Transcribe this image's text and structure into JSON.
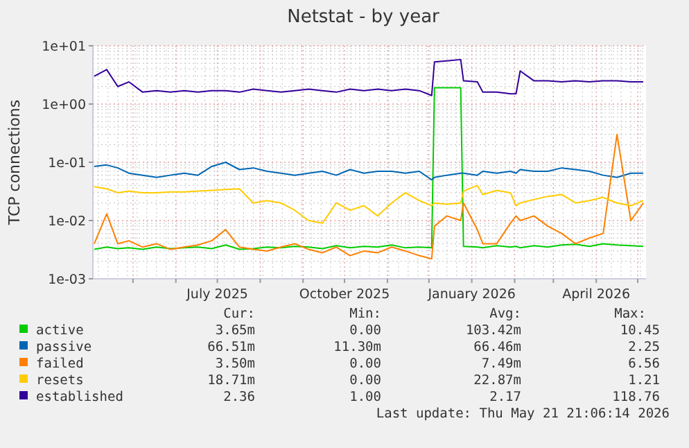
{
  "chart_data": {
    "type": "line",
    "title": "Netstat - by year",
    "ylabel": "TCP connections",
    "log": "y",
    "grid": true,
    "legend": "bottom",
    "line_style": "solid",
    "marker": "none",
    "xlim": [
      "2025-04-02",
      "2026-05-07"
    ],
    "xticks": [
      {
        "value": "2025-05-01",
        "label": null
      },
      {
        "value": "2025-06-01",
        "label": null
      },
      {
        "value": "2025-07-01",
        "label": "July 2025"
      },
      {
        "value": "2025-08-01",
        "label": null
      },
      {
        "value": "2025-09-01",
        "label": null
      },
      {
        "value": "2025-10-01",
        "label": "October 2025"
      },
      {
        "value": "2025-11-01",
        "label": null
      },
      {
        "value": "2025-12-01",
        "label": null
      },
      {
        "value": "2026-01-01",
        "label": "January 2026"
      },
      {
        "value": "2026-02-01",
        "label": null
      },
      {
        "value": "2026-03-01",
        "label": null
      },
      {
        "value": "2026-04-01",
        "label": "April 2026"
      },
      {
        "value": "2026-05-01",
        "label": null
      }
    ],
    "ylim": [
      0.001,
      10
    ],
    "yticks": [
      {
        "value": 0.001,
        "label": "1e-03"
      },
      {
        "value": 0.01,
        "label": "1e-02"
      },
      {
        "value": 0.1,
        "label": "1e-01"
      },
      {
        "value": 1,
        "label": "1e+00"
      },
      {
        "value": 10,
        "label": "1e+01"
      }
    ],
    "x": [
      "2025-04-03",
      "2025-04-12",
      "2025-04-20",
      "2025-04-28",
      "2025-05-08",
      "2025-05-18",
      "2025-05-28",
      "2025-06-07",
      "2025-06-17",
      "2025-06-27",
      "2025-07-07",
      "2025-07-17",
      "2025-07-27",
      "2025-08-06",
      "2025-08-16",
      "2025-08-26",
      "2025-09-05",
      "2025-09-15",
      "2025-09-25",
      "2025-10-05",
      "2025-10-15",
      "2025-10-25",
      "2025-11-04",
      "2025-11-14",
      "2025-11-24",
      "2025-12-03",
      "2025-12-05",
      "2025-12-14",
      "2025-12-24",
      "2025-12-26",
      "2026-01-05",
      "2026-01-09",
      "2026-01-19",
      "2026-01-29",
      "2026-02-02",
      "2026-02-05",
      "2026-02-15",
      "2026-02-25",
      "2026-03-07",
      "2026-03-17",
      "2026-03-27",
      "2026-04-06",
      "2026-04-16",
      "2026-04-26",
      "2026-05-05"
    ],
    "series": [
      {
        "name": "active",
        "color": "#00cc00",
        "values": [
          0.0032,
          0.0035,
          0.0033,
          0.0034,
          0.0032,
          0.0035,
          0.0033,
          0.0034,
          0.0035,
          0.0033,
          0.0038,
          0.0032,
          0.0033,
          0.0035,
          0.0034,
          0.0036,
          0.0035,
          0.0033,
          0.0037,
          0.0034,
          0.0036,
          0.0035,
          0.0038,
          0.0034,
          0.0035,
          0.0034,
          1.9,
          1.9,
          1.9,
          0.0036,
          0.0035,
          0.0034,
          0.0037,
          0.0035,
          0.0036,
          0.0034,
          0.0037,
          0.0035,
          0.0038,
          0.0039,
          0.0036,
          0.004,
          0.0038,
          0.0037,
          0.0036
        ]
      },
      {
        "name": "passive",
        "color": "#0066b3",
        "values": [
          0.085,
          0.09,
          0.08,
          0.065,
          0.06,
          0.055,
          0.06,
          0.065,
          0.06,
          0.085,
          0.1,
          0.075,
          0.08,
          0.07,
          0.065,
          0.06,
          0.065,
          0.07,
          0.06,
          0.075,
          0.065,
          0.07,
          0.07,
          0.065,
          0.07,
          0.05,
          0.055,
          0.06,
          0.065,
          0.065,
          0.06,
          0.07,
          0.065,
          0.07,
          0.065,
          0.075,
          0.07,
          0.07,
          0.08,
          0.075,
          0.07,
          0.06,
          0.055,
          0.065,
          0.065
        ]
      },
      {
        "name": "failed",
        "color": "#ff8000",
        "values": [
          0.004,
          0.013,
          0.004,
          0.0045,
          0.0035,
          0.004,
          0.0032,
          0.0035,
          0.0038,
          0.0045,
          0.007,
          0.0035,
          0.0032,
          0.003,
          0.0035,
          0.004,
          0.0032,
          0.0028,
          0.0035,
          0.0025,
          0.003,
          0.0028,
          0.0035,
          0.003,
          0.0025,
          0.0022,
          0.008,
          0.012,
          0.01,
          0.02,
          0.007,
          0.004,
          0.004,
          0.009,
          0.012,
          0.01,
          0.012,
          0.008,
          0.006,
          0.004,
          0.005,
          0.006,
          0.3,
          0.01,
          0.02
        ]
      },
      {
        "name": "resets",
        "color": "#ffcc00",
        "values": [
          0.038,
          0.035,
          0.03,
          0.032,
          0.03,
          0.03,
          0.031,
          0.031,
          0.032,
          0.033,
          0.034,
          0.035,
          0.02,
          0.022,
          0.02,
          0.015,
          0.01,
          0.009,
          0.02,
          0.015,
          0.018,
          0.012,
          0.02,
          0.03,
          0.022,
          0.018,
          0.02,
          0.019,
          0.02,
          0.032,
          0.04,
          0.028,
          0.033,
          0.03,
          0.018,
          0.02,
          0.023,
          0.026,
          0.028,
          0.02,
          0.022,
          0.025,
          0.02,
          0.018,
          0.022
        ]
      },
      {
        "name": "established",
        "color": "#330099",
        "values": [
          3.0,
          3.9,
          2.0,
          2.4,
          1.6,
          1.7,
          1.6,
          1.7,
          1.6,
          1.7,
          1.7,
          1.6,
          1.8,
          1.7,
          1.6,
          1.7,
          1.8,
          1.7,
          1.6,
          1.8,
          1.7,
          1.8,
          1.7,
          1.8,
          1.7,
          1.4,
          5.3,
          5.5,
          5.8,
          2.5,
          2.4,
          1.6,
          1.6,
          1.5,
          1.5,
          3.7,
          2.5,
          2.5,
          2.4,
          2.5,
          2.4,
          2.5,
          2.5,
          2.4,
          2.4
        ]
      }
    ],
    "annotations": [
      "Cur:",
      "Min:",
      "Avg:",
      "Max:",
      "3.65m",
      "0.00",
      "103.42m",
      "10.45",
      "66.51m",
      "11.30m",
      "66.46m",
      "2.25",
      "3.50m",
      "0.00",
      "7.49m",
      "6.56",
      "18.71m",
      "0.00",
      "22.87m",
      "1.21",
      "2.36",
      "1.00",
      "2.17",
      "118.76",
      "Last update: Thu May 21 21:06:14 2026"
    ]
  }
}
